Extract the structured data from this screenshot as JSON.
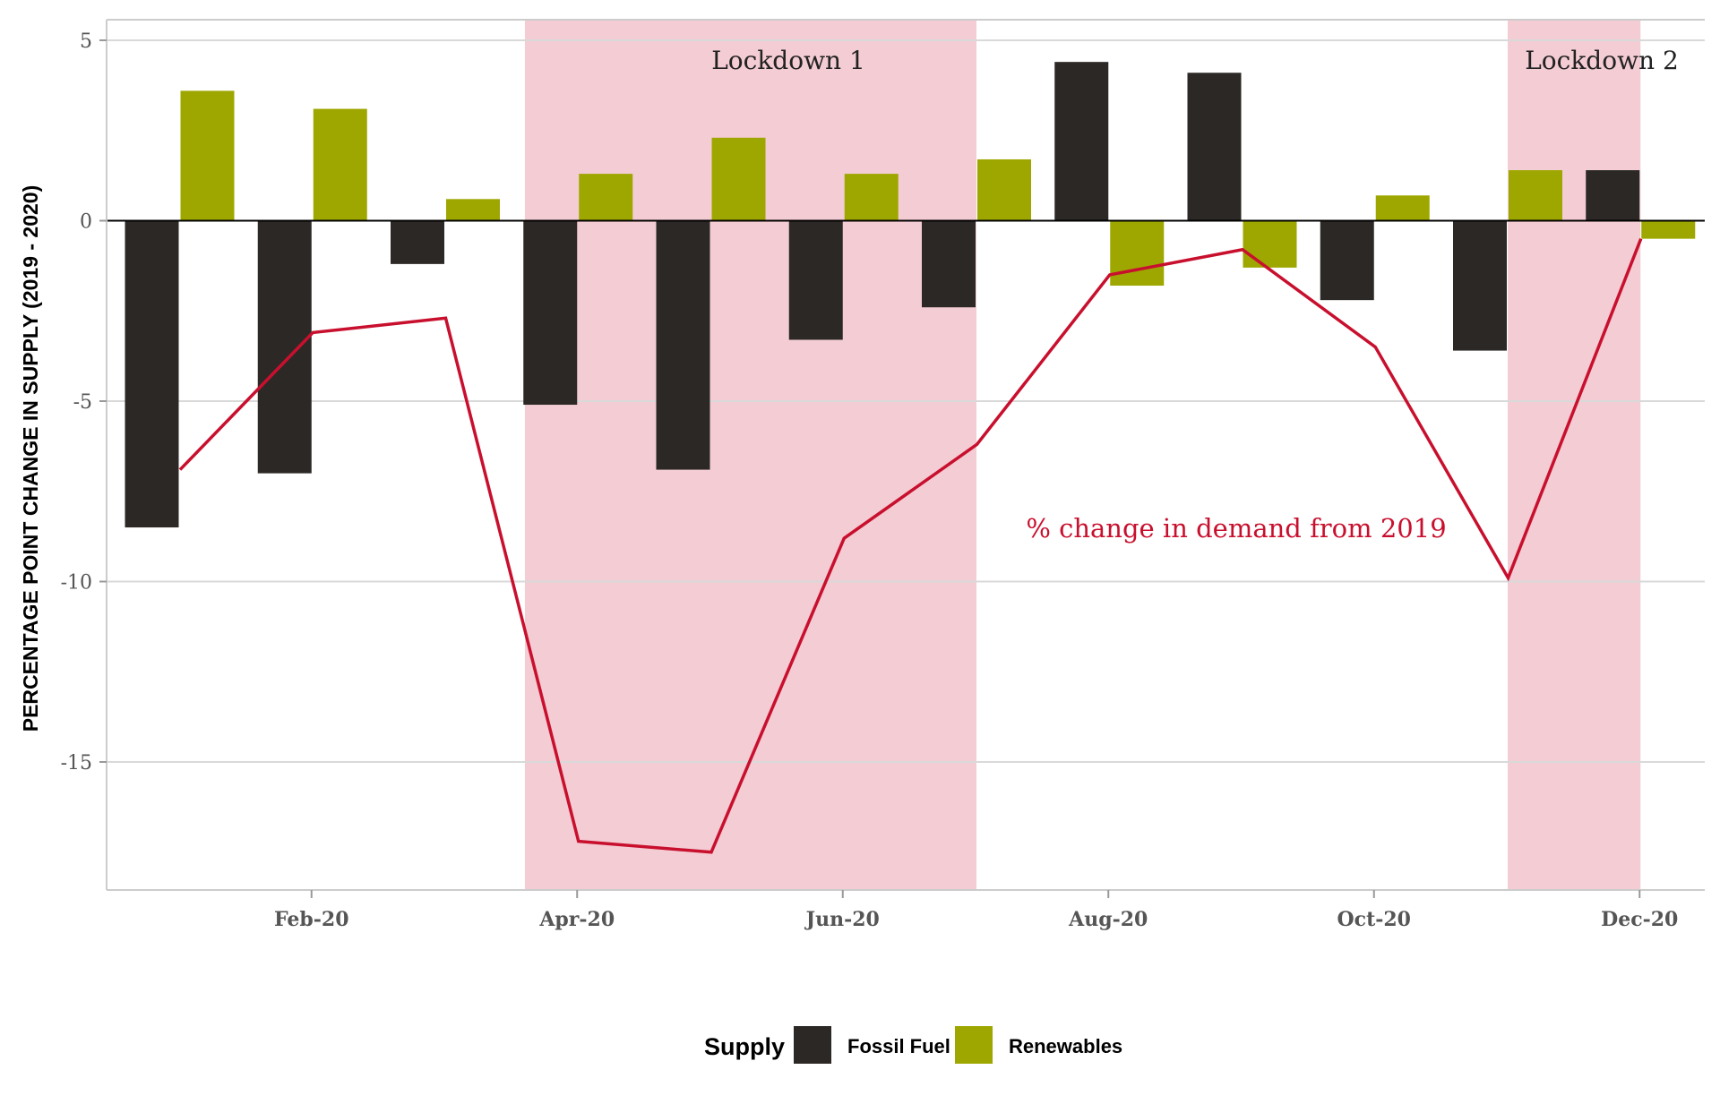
{
  "chart_data": {
    "type": "bar",
    "ylabel": "PERCENTAGE POINT CHANGE IN SUPPLY (2019 - 2020)",
    "xlabel": "",
    "ylim": [
      -18.5,
      5.6
    ],
    "yticks": [
      5,
      0,
      -5,
      -10,
      -15
    ],
    "ytick_labels": [
      "5",
      "0",
      "-5",
      "-10",
      "-15"
    ],
    "xticks": [
      {
        "label": "Feb-20",
        "month": 2
      },
      {
        "label": "Apr-20",
        "month": 4
      },
      {
        "label": "Jun-20",
        "month": 6
      },
      {
        "label": "Aug-20",
        "month": 8
      },
      {
        "label": "Oct-20",
        "month": 10
      },
      {
        "label": "Dec-20",
        "month": 12
      }
    ],
    "categories": [
      "Jan-20",
      "Feb-20",
      "Mar-20",
      "Apr-20",
      "May-20",
      "Jun-20",
      "Jul-20",
      "Aug-20",
      "Sep-20",
      "Oct-20",
      "Nov-20",
      "Dec-20"
    ],
    "series": [
      {
        "name": "Fossil Fuel",
        "color": "#2b2826",
        "values": [
          -8.5,
          -7.0,
          -1.2,
          -5.1,
          -6.9,
          -3.3,
          -2.4,
          4.4,
          4.1,
          -2.2,
          -3.6,
          1.4
        ]
      },
      {
        "name": "Renewables",
        "color": "#9ea700",
        "values": [
          3.6,
          3.1,
          0.6,
          1.3,
          2.3,
          1.3,
          1.7,
          -1.8,
          -1.3,
          0.7,
          1.4,
          -0.5
        ]
      }
    ],
    "demand_line": {
      "label": "% change in demand from 2019",
      "color": "#c8102e",
      "values": [
        -6.9,
        -3.1,
        -2.7,
        -17.2,
        -17.5,
        -8.8,
        -6.2,
        -1.5,
        -0.8,
        -3.5,
        -9.9,
        -0.5
      ]
    },
    "shaded_periods": [
      {
        "label": "Lockdown 1",
        "from_month": 3.6,
        "to_month": 7.0
      },
      {
        "label": "Lockdown 2",
        "from_month": 11.0,
        "to_month": 12.0
      }
    ],
    "legend": {
      "title": "Supply",
      "position": "bottom",
      "items": [
        "Fossil Fuel",
        "Renewables"
      ]
    },
    "grid": true
  },
  "colors": {
    "shade": "#f4ccd4",
    "grid": "#d9d9d9",
    "axis": "#cccccc",
    "zero_line": "#000000"
  }
}
